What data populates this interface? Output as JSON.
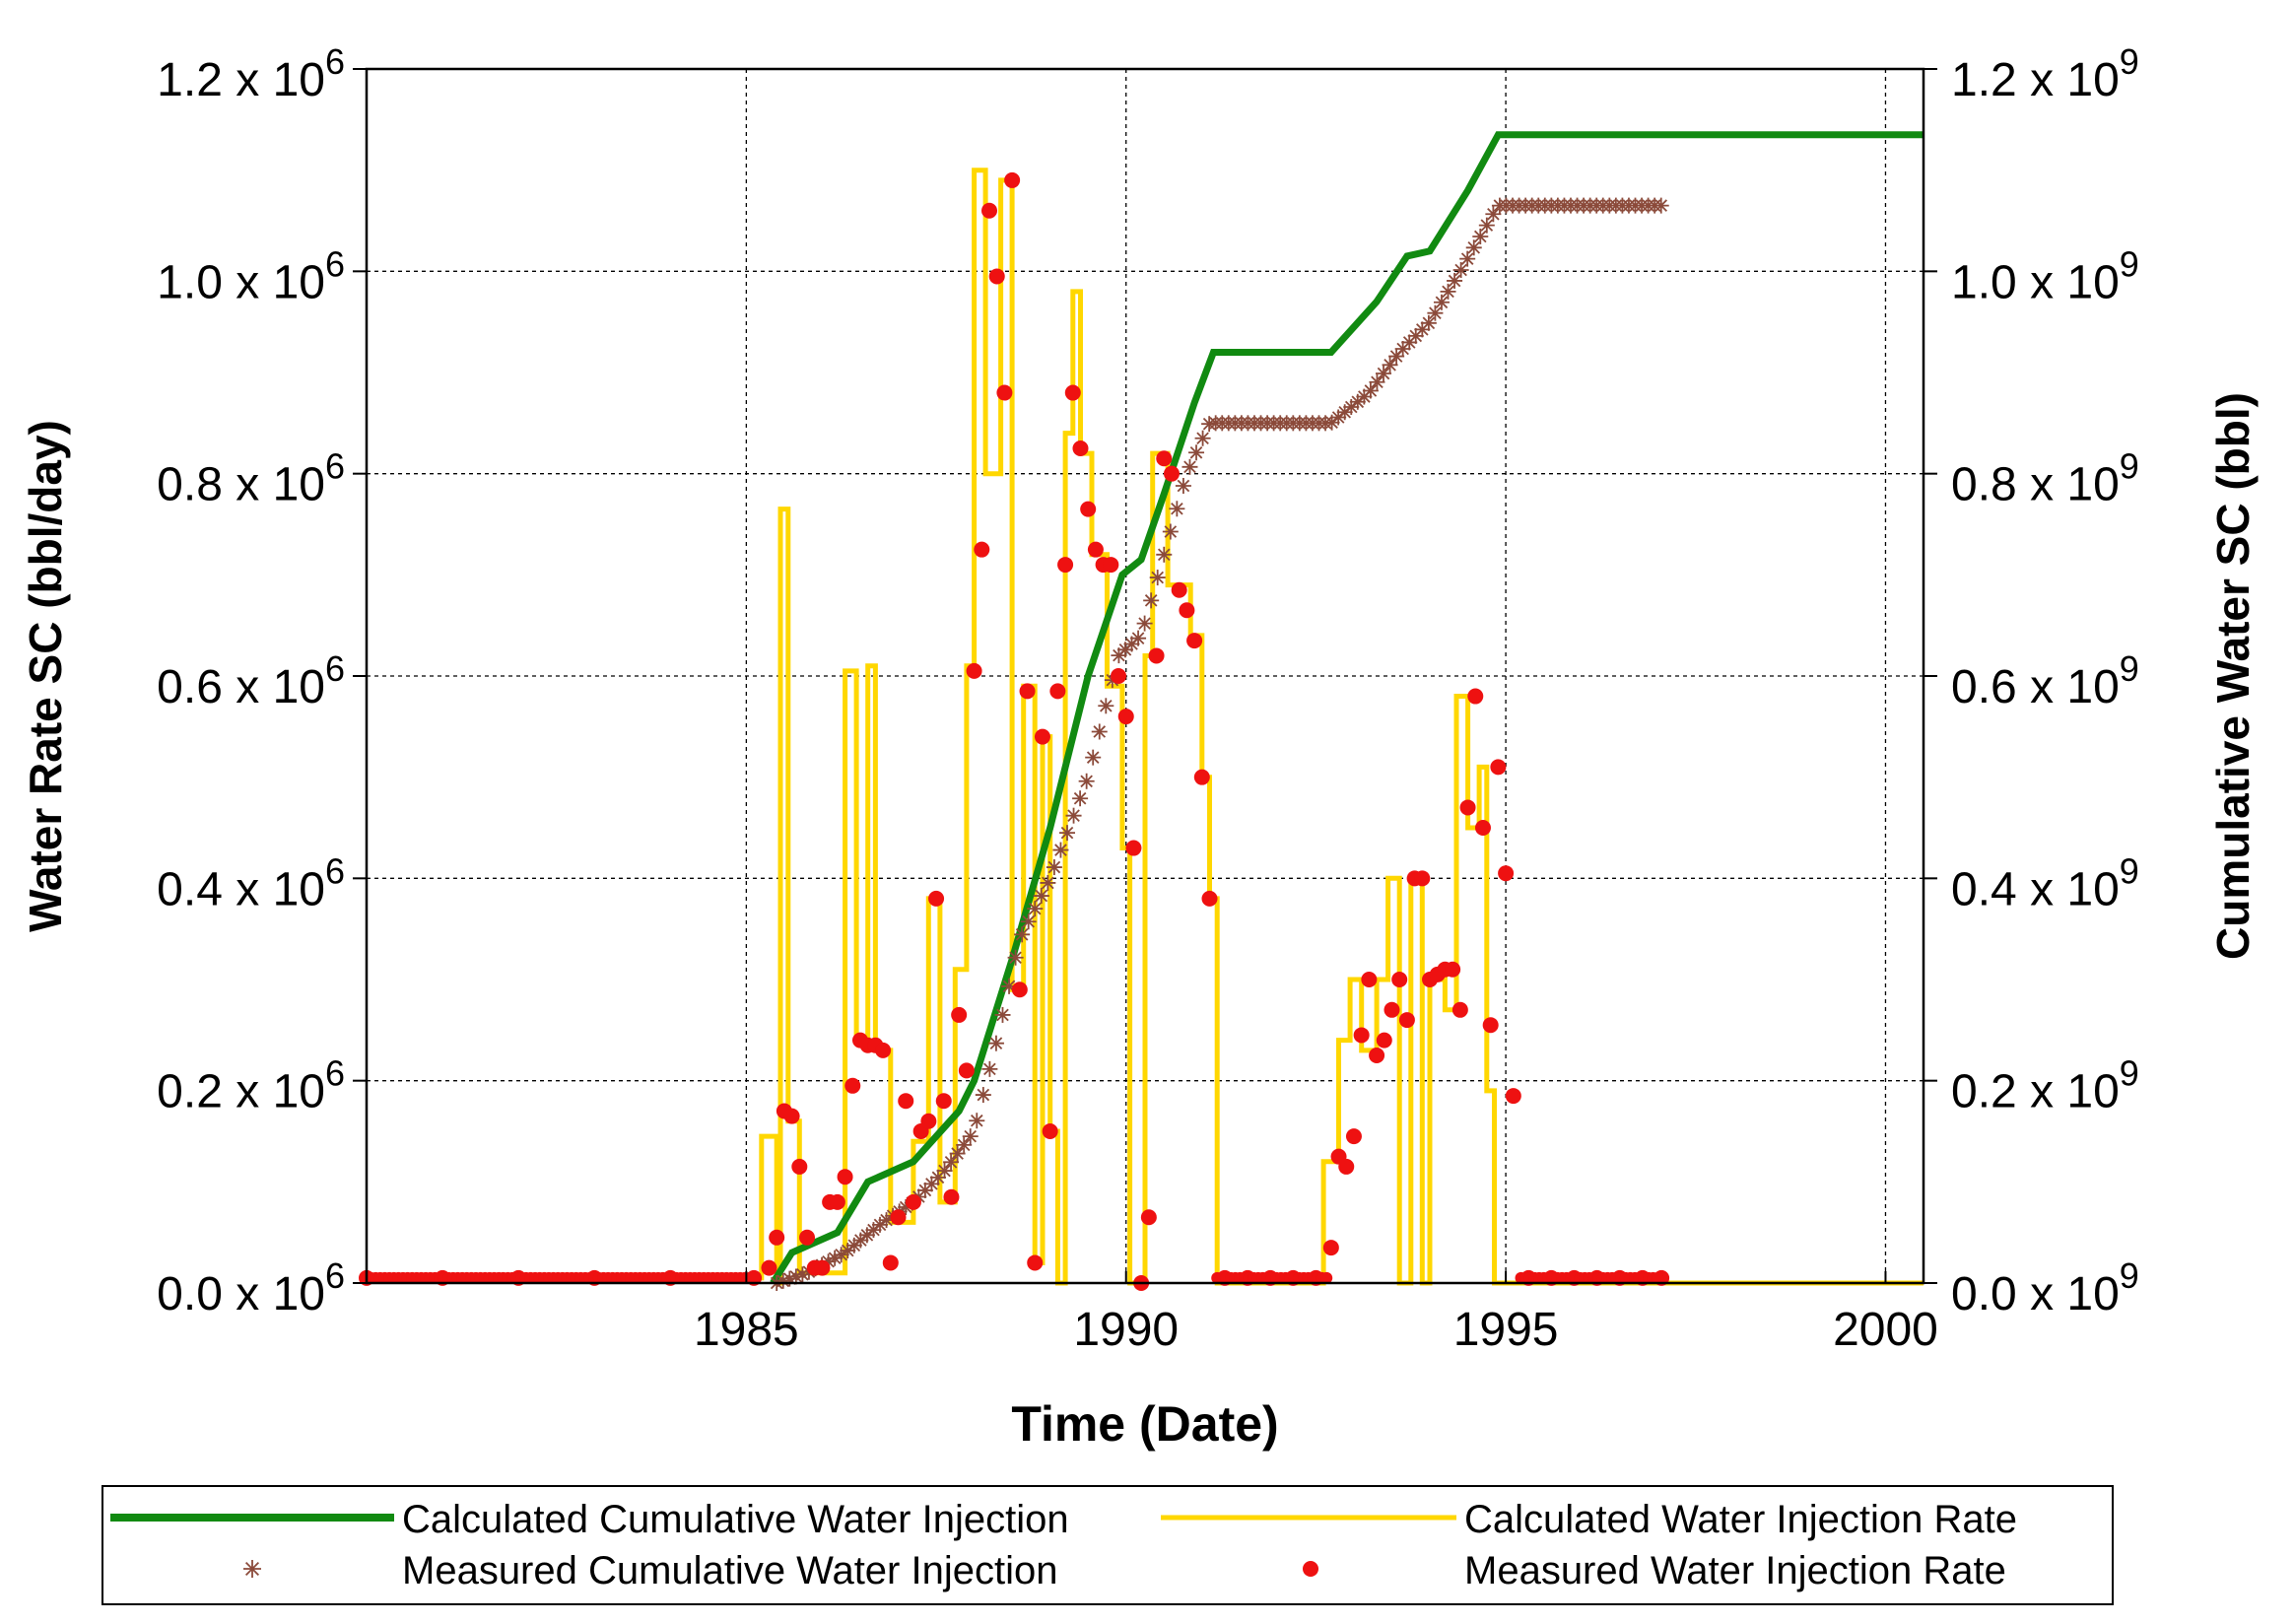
{
  "chart_data": {
    "type": "line",
    "x_axis": {
      "label": "Time (Date)",
      "range": [
        1980,
        2000.5
      ],
      "ticks": [
        1985,
        1990,
        1995,
        2000
      ],
      "tick_labels": [
        "1985",
        "1990",
        "1995",
        "2000"
      ],
      "grid": true
    },
    "y_left": {
      "label": "Water Rate SC (bbl/day)",
      "range": [
        0,
        1200000
      ],
      "ticks": [
        0,
        200000,
        400000,
        600000,
        800000,
        1000000,
        1200000
      ],
      "tick_labels": [
        "0.0",
        "0.2",
        "0.4",
        "0.6",
        "0.8",
        "1.0",
        "1.2"
      ],
      "tick_multiplier": "x 10",
      "tick_exponent": "6",
      "grid": true
    },
    "y_right": {
      "label": "Cumulative Water SC (bbl)",
      "range": [
        0,
        1200000000
      ],
      "ticks": [
        0,
        200000000,
        400000000,
        600000000,
        800000000,
        1000000000,
        1200000000
      ],
      "tick_labels": [
        "0.0",
        "0.2",
        "0.4",
        "0.6",
        "0.8",
        "1.0",
        "1.2"
      ],
      "tick_multiplier": "x 10",
      "tick_exponent": "9"
    },
    "legend": {
      "placement": "bottom",
      "entries": [
        {
          "label": "Calculated Cumulative Water Injection",
          "series": "calc_cum"
        },
        {
          "label": "Calculated Water Injection Rate",
          "series": "calc_rate"
        },
        {
          "label": "Measured Cumulative Water Injection",
          "series": "meas_cum"
        },
        {
          "label": "Measured Water Injection Rate",
          "series": "meas_rate"
        }
      ]
    },
    "series": [
      {
        "id": "calc_cum",
        "name": "Calculated Cumulative Water Injection",
        "axis": "right",
        "style": "line",
        "color": "#118a11",
        "points": [
          [
            1985.35,
            0
          ],
          [
            1985.6,
            30000000
          ],
          [
            1986.2,
            50000000
          ],
          [
            1986.6,
            100000000
          ],
          [
            1987.2,
            120000000
          ],
          [
            1987.8,
            170000000
          ],
          [
            1988.0,
            200000000
          ],
          [
            1988.5,
            320000000
          ],
          [
            1989.0,
            450000000
          ],
          [
            1989.5,
            600000000
          ],
          [
            1989.95,
            700000000
          ],
          [
            1990.2,
            715000000
          ],
          [
            1990.5,
            780000000
          ],
          [
            1990.9,
            870000000
          ],
          [
            1991.15,
            920000000
          ],
          [
            1992.2,
            920000000
          ],
          [
            1992.7,
            920000000
          ],
          [
            1993.3,
            970000000
          ],
          [
            1993.7,
            1015000000
          ],
          [
            1994.0,
            1020000000
          ],
          [
            1994.5,
            1080000000
          ],
          [
            1994.9,
            1135000000
          ],
          [
            2000.5,
            1135000000
          ]
        ]
      },
      {
        "id": "meas_cum",
        "name": "Measured Cumulative Water Injection",
        "axis": "right",
        "style": "marker",
        "marker": "asterisk",
        "color": "#8b4a3a",
        "points": [
          [
            1985.4,
            0
          ],
          [
            1985.8,
            10000000
          ],
          [
            1986.3,
            30000000
          ],
          [
            1986.8,
            60000000
          ],
          [
            1987.2,
            80000000
          ],
          [
            1987.6,
            110000000
          ],
          [
            1988.0,
            150000000
          ],
          [
            1988.3,
            240000000
          ],
          [
            1988.6,
            340000000
          ],
          [
            1989.0,
            400000000
          ],
          [
            1989.5,
            500000000
          ],
          [
            1989.9,
            620000000
          ],
          [
            1990.2,
            640000000
          ],
          [
            1990.5,
            720000000
          ],
          [
            1990.8,
            800000000
          ],
          [
            1991.1,
            850000000
          ],
          [
            1992.0,
            850000000
          ],
          [
            1992.7,
            850000000
          ],
          [
            1993.2,
            880000000
          ],
          [
            1993.6,
            920000000
          ],
          [
            1994.0,
            950000000
          ],
          [
            1994.4,
            1000000000
          ],
          [
            1994.9,
            1065000000
          ],
          [
            1997.1,
            1065000000
          ]
        ]
      },
      {
        "id": "calc_rate",
        "name": "Calculated Water Injection Rate",
        "axis": "left",
        "style": "step",
        "color": "#ffd700",
        "points": [
          [
            1980,
            5000
          ],
          [
            1985.2,
            5000
          ],
          [
            1985.2,
            145000
          ],
          [
            1985.4,
            145000
          ],
          [
            1985.4,
            0
          ],
          [
            1985.45,
            0
          ],
          [
            1985.45,
            765000
          ],
          [
            1985.55,
            765000
          ],
          [
            1985.55,
            160000
          ],
          [
            1985.7,
            160000
          ],
          [
            1985.7,
            10000
          ],
          [
            1986.3,
            10000
          ],
          [
            1986.3,
            605000
          ],
          [
            1986.45,
            605000
          ],
          [
            1986.45,
            240000
          ],
          [
            1986.6,
            240000
          ],
          [
            1986.6,
            610000
          ],
          [
            1986.7,
            610000
          ],
          [
            1986.7,
            230000
          ],
          [
            1986.9,
            230000
          ],
          [
            1986.9,
            60000
          ],
          [
            1987.2,
            60000
          ],
          [
            1987.2,
            140000
          ],
          [
            1987.4,
            140000
          ],
          [
            1987.4,
            380000
          ],
          [
            1987.55,
            380000
          ],
          [
            1987.55,
            80000
          ],
          [
            1987.75,
            80000
          ],
          [
            1987.75,
            310000
          ],
          [
            1987.9,
            310000
          ],
          [
            1987.9,
            610000
          ],
          [
            1988.0,
            610000
          ],
          [
            1988.0,
            1100000
          ],
          [
            1988.15,
            1100000
          ],
          [
            1988.15,
            800000
          ],
          [
            1988.35,
            800000
          ],
          [
            1988.35,
            1090000
          ],
          [
            1988.5,
            1090000
          ],
          [
            1988.5,
            290000
          ],
          [
            1988.65,
            290000
          ],
          [
            1988.65,
            590000
          ],
          [
            1988.8,
            590000
          ],
          [
            1988.8,
            20000
          ],
          [
            1988.9,
            20000
          ],
          [
            1988.9,
            540000
          ],
          [
            1989.0,
            540000
          ],
          [
            1989.0,
            150000
          ],
          [
            1989.1,
            150000
          ],
          [
            1989.1,
            0
          ],
          [
            1989.2,
            0
          ],
          [
            1989.2,
            840000
          ],
          [
            1989.3,
            840000
          ],
          [
            1989.3,
            980000
          ],
          [
            1989.4,
            980000
          ],
          [
            1989.4,
            820000
          ],
          [
            1989.55,
            820000
          ],
          [
            1989.55,
            720000
          ],
          [
            1989.75,
            720000
          ],
          [
            1989.75,
            590000
          ],
          [
            1989.95,
            590000
          ],
          [
            1989.95,
            430000
          ],
          [
            1990.05,
            430000
          ],
          [
            1990.05,
            0
          ],
          [
            1990.25,
            0
          ],
          [
            1990.25,
            620000
          ],
          [
            1990.35,
            620000
          ],
          [
            1990.35,
            820000
          ],
          [
            1990.55,
            820000
          ],
          [
            1990.55,
            690000
          ],
          [
            1990.85,
            690000
          ],
          [
            1990.85,
            640000
          ],
          [
            1991.0,
            640000
          ],
          [
            1991.0,
            500000
          ],
          [
            1991.1,
            500000
          ],
          [
            1991.1,
            380000
          ],
          [
            1991.2,
            380000
          ],
          [
            1991.2,
            0
          ],
          [
            1992.6,
            0
          ],
          [
            1992.6,
            120000
          ],
          [
            1992.8,
            120000
          ],
          [
            1992.8,
            240000
          ],
          [
            1992.95,
            240000
          ],
          [
            1992.95,
            300000
          ],
          [
            1993.1,
            300000
          ],
          [
            1993.1,
            230000
          ],
          [
            1993.3,
            230000
          ],
          [
            1993.3,
            300000
          ],
          [
            1993.45,
            300000
          ],
          [
            1993.45,
            400000
          ],
          [
            1993.6,
            400000
          ],
          [
            1993.6,
            0
          ],
          [
            1993.75,
            0
          ],
          [
            1993.75,
            400000
          ],
          [
            1993.9,
            400000
          ],
          [
            1993.9,
            0
          ],
          [
            1994.0,
            0
          ],
          [
            1994.0,
            300000
          ],
          [
            1994.2,
            300000
          ],
          [
            1994.2,
            270000
          ],
          [
            1994.35,
            270000
          ],
          [
            1994.35,
            580000
          ],
          [
            1994.5,
            580000
          ],
          [
            1994.5,
            450000
          ],
          [
            1994.65,
            450000
          ],
          [
            1994.65,
            510000
          ],
          [
            1994.75,
            510000
          ],
          [
            1994.75,
            190000
          ],
          [
            1994.85,
            190000
          ],
          [
            1994.85,
            0
          ],
          [
            2000.5,
            0
          ]
        ]
      },
      {
        "id": "meas_rate",
        "name": "Measured Water Injection Rate",
        "axis": "left",
        "style": "marker",
        "marker": "dot",
        "color": "#ee1111",
        "points": [
          [
            1980,
            5000
          ],
          [
            1981,
            5000
          ],
          [
            1982,
            5000
          ],
          [
            1983,
            5000
          ],
          [
            1984,
            5000
          ],
          [
            1985.1,
            5000
          ],
          [
            1985.3,
            15000
          ],
          [
            1985.4,
            45000
          ],
          [
            1985.5,
            170000
          ],
          [
            1985.6,
            165000
          ],
          [
            1985.7,
            115000
          ],
          [
            1985.8,
            45000
          ],
          [
            1985.9,
            15000
          ],
          [
            1986.0,
            15000
          ],
          [
            1986.1,
            80000
          ],
          [
            1986.2,
            80000
          ],
          [
            1986.3,
            105000
          ],
          [
            1986.4,
            195000
          ],
          [
            1986.5,
            240000
          ],
          [
            1986.6,
            235000
          ],
          [
            1986.7,
            235000
          ],
          [
            1986.8,
            230000
          ],
          [
            1986.9,
            20000
          ],
          [
            1987.0,
            65000
          ],
          [
            1987.1,
            180000
          ],
          [
            1987.2,
            80000
          ],
          [
            1987.3,
            150000
          ],
          [
            1987.4,
            160000
          ],
          [
            1987.5,
            380000
          ],
          [
            1987.6,
            180000
          ],
          [
            1987.7,
            85000
          ],
          [
            1987.8,
            265000
          ],
          [
            1987.9,
            210000
          ],
          [
            1988.0,
            605000
          ],
          [
            1988.1,
            725000
          ],
          [
            1988.2,
            1060000
          ],
          [
            1988.3,
            995000
          ],
          [
            1988.4,
            880000
          ],
          [
            1988.5,
            1090000
          ],
          [
            1988.6,
            290000
          ],
          [
            1988.7,
            585000
          ],
          [
            1988.8,
            20000
          ],
          [
            1988.9,
            540000
          ],
          [
            1989.0,
            150000
          ],
          [
            1989.1,
            585000
          ],
          [
            1989.2,
            710000
          ],
          [
            1989.3,
            880000
          ],
          [
            1989.4,
            825000
          ],
          [
            1989.5,
            765000
          ],
          [
            1989.6,
            725000
          ],
          [
            1989.7,
            710000
          ],
          [
            1989.8,
            710000
          ],
          [
            1989.9,
            600000
          ],
          [
            1990.0,
            560000
          ],
          [
            1990.1,
            430000
          ],
          [
            1990.2,
            0
          ],
          [
            1990.3,
            65000
          ],
          [
            1990.4,
            620000
          ],
          [
            1990.5,
            815000
          ],
          [
            1990.6,
            800000
          ],
          [
            1990.7,
            685000
          ],
          [
            1990.8,
            665000
          ],
          [
            1990.9,
            635000
          ],
          [
            1991.0,
            500000
          ],
          [
            1991.1,
            380000
          ],
          [
            1991.3,
            5000
          ],
          [
            1991.6,
            5000
          ],
          [
            1991.9,
            5000
          ],
          [
            1992.2,
            5000
          ],
          [
            1992.5,
            5000
          ],
          [
            1992.7,
            35000
          ],
          [
            1992.8,
            125000
          ],
          [
            1992.9,
            115000
          ],
          [
            1993.0,
            145000
          ],
          [
            1993.1,
            245000
          ],
          [
            1993.2,
            300000
          ],
          [
            1993.3,
            225000
          ],
          [
            1993.4,
            240000
          ],
          [
            1993.5,
            270000
          ],
          [
            1993.6,
            300000
          ],
          [
            1993.7,
            260000
          ],
          [
            1993.8,
            400000
          ],
          [
            1993.9,
            400000
          ],
          [
            1994.0,
            300000
          ],
          [
            1994.1,
            305000
          ],
          [
            1994.2,
            310000
          ],
          [
            1994.3,
            310000
          ],
          [
            1994.4,
            270000
          ],
          [
            1994.5,
            470000
          ],
          [
            1994.6,
            580000
          ],
          [
            1994.7,
            450000
          ],
          [
            1994.8,
            255000
          ],
          [
            1994.9,
            510000
          ],
          [
            1995.0,
            405000
          ],
          [
            1995.1,
            185000
          ],
          [
            1995.3,
            5000
          ],
          [
            1995.6,
            5000
          ],
          [
            1995.9,
            5000
          ],
          [
            1996.2,
            5000
          ],
          [
            1996.5,
            5000
          ],
          [
            1996.8,
            5000
          ],
          [
            1997.05,
            5000
          ]
        ]
      }
    ]
  }
}
